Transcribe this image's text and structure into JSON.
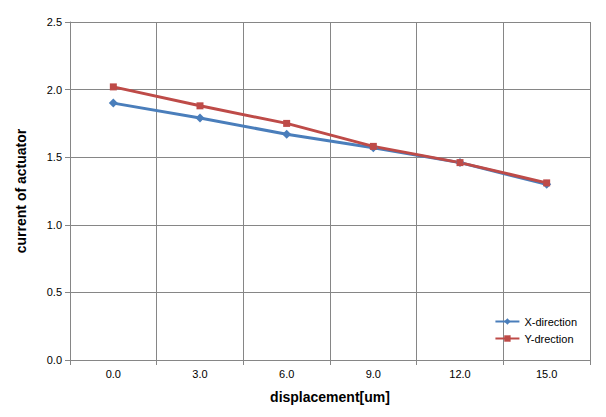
{
  "chart_data": {
    "type": "line",
    "x_label": "displacement[um]",
    "y_label": "current of actuator",
    "categories": [
      "0.0",
      "3.0",
      "6.0",
      "9.0",
      "12.0",
      "15.0"
    ],
    "series": [
      {
        "name": "X-direction",
        "color": "#4a7ebb",
        "marker": "diamond",
        "values": [
          1.9,
          1.79,
          1.67,
          1.57,
          1.46,
          1.3
        ]
      },
      {
        "name": "Y-drection",
        "color": "#be4b48",
        "marker": "square",
        "values": [
          2.02,
          1.88,
          1.75,
          1.58,
          1.46,
          1.31
        ]
      }
    ],
    "ylim": [
      0,
      2.5
    ],
    "yticks": [
      {
        "value": 0,
        "label": "0.0"
      },
      0.5,
      {
        "value": 1,
        "label": "1.0"
      },
      1.5,
      {
        "value": 2,
        "label": "2.0"
      },
      2.5
    ],
    "grid": true,
    "legend": "lower right"
  }
}
